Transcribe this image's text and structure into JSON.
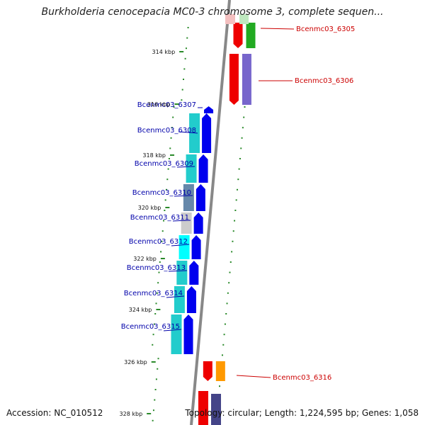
{
  "title": "Burkholderia cenocepacia MC0-3 chromosome 3, complete sequen...",
  "footer": {
    "accession": "Accession: NC_010512",
    "summary": "Topology: circular; Length: 1,224,595 bp; Genes: 1,058"
  },
  "colors": {
    "reverse_label": "#cc0000",
    "forward_label": "#0000aa",
    "backbone": "#888888",
    "tick": "#2a8a2a"
  },
  "ruler": [
    "314 kbp",
    "316 kbp",
    "318 kbp",
    "320 kbp",
    "322 kbp",
    "324 kbp",
    "326 kbp",
    "328 kbp"
  ],
  "genes": [
    {
      "label": "Bcenmc03_6305",
      "strand": "reverse",
      "cog_color": "#22aa22"
    },
    {
      "label": "Bcenmc03_6306",
      "strand": "reverse",
      "cog_color": "#7766cc"
    },
    {
      "label": "Bcenmc03_6307",
      "strand": "forward",
      "cog_color": null
    },
    {
      "label": "Bcenmc03_6308",
      "strand": "forward",
      "cog_color": "#22cccc"
    },
    {
      "label": "Bcenmc03_6309",
      "strand": "forward",
      "cog_color": "#22cccc"
    },
    {
      "label": "Bcenmc03_6310",
      "strand": "forward",
      "cog_color": "#6688aa"
    },
    {
      "label": "Bcenmc03_6311",
      "strand": "forward",
      "cog_color": "#cccccc"
    },
    {
      "label": "Bcenmc03_6312",
      "strand": "forward",
      "cog_color": "#00ffff"
    },
    {
      "label": "Bcenmc03_6313",
      "strand": "forward",
      "cog_color": "#22cccc"
    },
    {
      "label": "Bcenmc03_6314",
      "strand": "forward",
      "cog_color": "#22cccc"
    },
    {
      "label": "Bcenmc03_6315",
      "strand": "forward",
      "cog_color": "#22cccc"
    },
    {
      "label": "Bcenmc03_6316",
      "strand": "reverse",
      "cog_color": "#ff9900"
    }
  ]
}
